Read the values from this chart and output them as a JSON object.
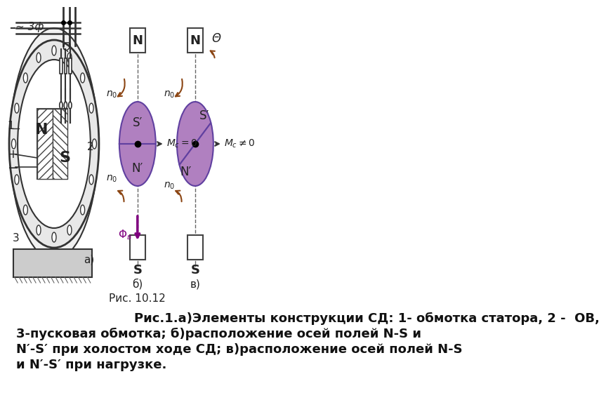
{
  "bg_color": "#ffffff",
  "fig_width": 7.2,
  "fig_height": 5.4,
  "caption_line1": "    Рис.1.а)Элементы конструкции СД: 1- обмотка статора, 2 -  ОВ,",
  "caption_line2": "3-пусковая обмотка; б)расположение осей полей N-S и",
  "caption_line3": "N′-S′ при холостом ходе СД; в)расположение осей полей N-S",
  "caption_line4": "и N′-S′ при нагрузке.",
  "fig_label": "Рис. 10.12",
  "caption_fontsize": 13,
  "label_fontsize": 11
}
